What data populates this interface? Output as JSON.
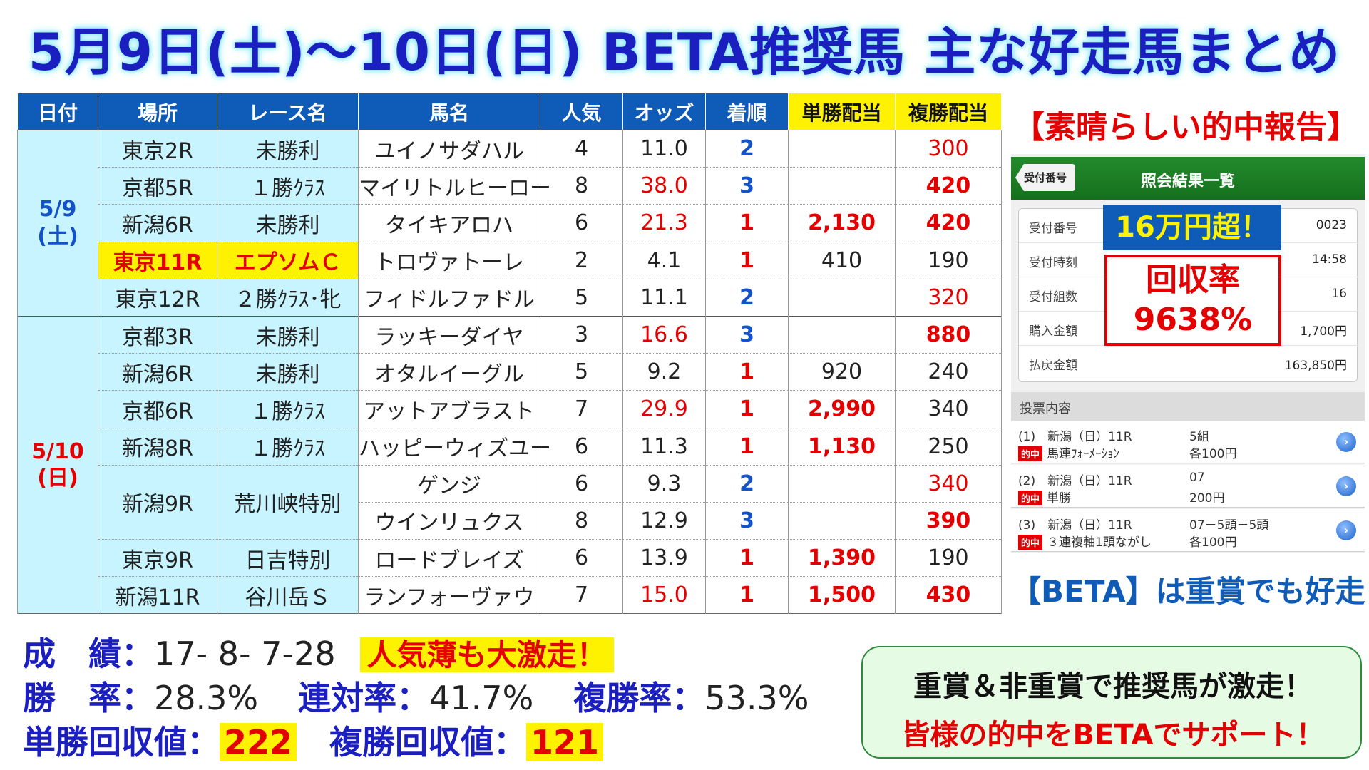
{
  "title": "5月9日(土)～10日(日) BETA推奨馬 主な好走馬まとめ",
  "table": {
    "headers": [
      "日付",
      "場所",
      "レース名",
      "馬名",
      "人気",
      "オッズ",
      "着順",
      "単勝配当",
      "複勝配当"
    ],
    "days": [
      {
        "date": "5/9",
        "weekday": "(土)"
      },
      {
        "date": "5/10",
        "weekday": "(日)"
      }
    ],
    "rows": [
      {
        "place": "東京2R",
        "race": "未勝利",
        "horse": "ユイノサダハル",
        "pop": "4",
        "odds": "11.0",
        "rank": "2",
        "win": "",
        "show": "300"
      },
      {
        "place": "京都5R",
        "race": "１勝ｸﾗｽ",
        "horse": "マイリトルヒーロー",
        "pop": "8",
        "odds": "38.0",
        "rank": "3",
        "win": "",
        "show": "420"
      },
      {
        "place": "新潟6R",
        "race": "未勝利",
        "horse": "タイキアロハ",
        "pop": "6",
        "odds": "21.3",
        "rank": "1",
        "win": "2,130",
        "show": "420"
      },
      {
        "place": "東京11R",
        "race": "エプソムＣ",
        "horse": "トロヴァトーレ",
        "pop": "2",
        "odds": "4.1",
        "rank": "1",
        "win": "410",
        "show": "190"
      },
      {
        "place": "東京12R",
        "race": "２勝ｸﾗｽ･牝",
        "horse": "フィドルファドル",
        "pop": "5",
        "odds": "11.1",
        "rank": "2",
        "win": "",
        "show": "320"
      },
      {
        "place": "京都3R",
        "race": "未勝利",
        "horse": "ラッキーダイヤ",
        "pop": "3",
        "odds": "16.6",
        "rank": "3",
        "win": "",
        "show": "880"
      },
      {
        "place": "新潟6R",
        "race": "未勝利",
        "horse": "オタルイーグル",
        "pop": "5",
        "odds": "9.2",
        "rank": "1",
        "win": "920",
        "show": "240"
      },
      {
        "place": "京都6R",
        "race": "１勝ｸﾗｽ",
        "horse": "アットアブラスト",
        "pop": "7",
        "odds": "29.9",
        "rank": "1",
        "win": "2,990",
        "show": "340"
      },
      {
        "place": "新潟8R",
        "race": "１勝ｸﾗｽ",
        "horse": "ハッピーウィズユー",
        "pop": "6",
        "odds": "11.3",
        "rank": "1",
        "win": "1,130",
        "show": "250"
      },
      {
        "place": "新潟9R",
        "race": "荒川峡特別",
        "horse": "ゲンジ",
        "pop": "6",
        "odds": "9.3",
        "rank": "2",
        "win": "",
        "show": "340"
      },
      {
        "place": "",
        "race": "",
        "horse": "ウインリュクス",
        "pop": "8",
        "odds": "12.9",
        "rank": "3",
        "win": "",
        "show": "390"
      },
      {
        "place": "東京9R",
        "race": "日吉特別",
        "horse": "ロードブレイズ",
        "pop": "6",
        "odds": "13.9",
        "rank": "1",
        "win": "1,390",
        "show": "190"
      },
      {
        "place": "新潟11R",
        "race": "谷川岳Ｓ",
        "horse": "ランフォーヴァウ",
        "pop": "7",
        "odds": "15.0",
        "rank": "1",
        "win": "1,500",
        "show": "430"
      }
    ]
  },
  "report": {
    "title": "【素晴らしい的中報告】",
    "header_back": "受付番号",
    "header_title": "照会結果一覧",
    "rows": [
      {
        "label": "受付番号",
        "value": "0023"
      },
      {
        "label": "受付時刻",
        "value": "14:58"
      },
      {
        "label": "受付組数",
        "value": "16"
      },
      {
        "label": "購入金額",
        "value": "1,700円"
      },
      {
        "label": "払戻金額",
        "value": "163,850円"
      }
    ],
    "badge_amount": "16万円超！",
    "badge_rate_label": "回収率",
    "badge_rate_value": "9638%",
    "section_title": "投票内容",
    "hit_label": "的中",
    "bets": [
      {
        "line1": "(1)　新潟（日）11R",
        "line2": "馬連ﾌｫｰﾒｰｼｮﾝ",
        "right1": "5組",
        "right2": "各100円"
      },
      {
        "line1": "(2)　新潟（日）11R",
        "line2": "単勝",
        "right1": "07",
        "right2": "200円"
      },
      {
        "line1": "(3)　新潟（日）11R",
        "line2": "３連複軸1頭ながし",
        "right1": "07－5頭－5頭",
        "right2": "各100円"
      }
    ],
    "beta_note": "【BETA】は重賞でも好走！"
  },
  "stats": {
    "record_label": "成　績：",
    "record_value": "17- 8- 7-28",
    "record_alert": "人気薄も大激走！",
    "win_rate_label": "勝　率：",
    "win_rate_value": "28.3%",
    "quinella_label": "連対率：",
    "quinella_value": "41.7%",
    "show_rate_label": "複勝率：",
    "show_rate_value": "53.3%",
    "win_return_label": "単勝回収値：",
    "win_return_value": "222",
    "show_return_label": "複勝回収値：",
    "show_return_value": "121"
  },
  "promo": {
    "line1": "重賞＆非重賞で推奨馬が激走！",
    "line2": "皆様の的中をBETAでサポート！"
  }
}
